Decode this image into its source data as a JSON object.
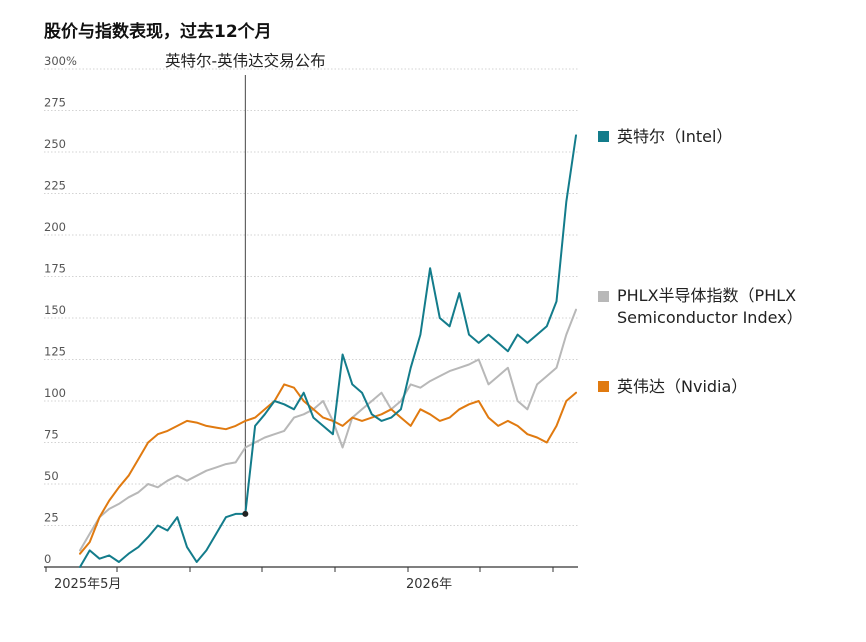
{
  "chart_data": {
    "type": "line",
    "title": "股价与指数表现，过去12个月",
    "y_unit_suffix": "%",
    "ylim": [
      0,
      300
    ],
    "yticks": [
      0,
      25,
      50,
      75,
      100,
      125,
      150,
      175,
      200,
      225,
      250,
      275,
      300
    ],
    "x_tick_labels": [
      "2025年5月",
      "2026年"
    ],
    "annotation": "英特尔-英伟达交易公布",
    "annotation_value": 32,
    "grid": true,
    "legend_position": "right",
    "series": [
      {
        "name": "英特尔（Intel）",
        "color": "#137c8b",
        "values": [
          0,
          10,
          5,
          7,
          3,
          8,
          12,
          18,
          25,
          22,
          30,
          12,
          3,
          10,
          20,
          30,
          32,
          32,
          85,
          92,
          100,
          98,
          95,
          105,
          90,
          85,
          80,
          128,
          110,
          105,
          92,
          88,
          90,
          95,
          120,
          140,
          180,
          150,
          145,
          165,
          140,
          135,
          140,
          135,
          130,
          140,
          135,
          140,
          145,
          160,
          220,
          260
        ]
      },
      {
        "name": "PHLX半导体指数（PHLX Semiconductor Index）",
        "color": "#b8b8b8",
        "values": [
          10,
          20,
          30,
          35,
          38,
          42,
          45,
          50,
          48,
          52,
          55,
          52,
          55,
          58,
          60,
          62,
          63,
          72,
          75,
          78,
          80,
          82,
          90,
          92,
          95,
          100,
          88,
          72,
          90,
          95,
          100,
          105,
          95,
          100,
          110,
          108,
          112,
          115,
          118,
          120,
          122,
          125,
          110,
          115,
          120,
          100,
          95,
          110,
          115,
          120,
          140,
          155
        ]
      },
      {
        "name": "英伟达（Nvidia）",
        "color": "#e07a10",
        "values": [
          8,
          15,
          30,
          40,
          48,
          55,
          65,
          75,
          80,
          82,
          85,
          88,
          87,
          85,
          84,
          83,
          85,
          88,
          90,
          95,
          100,
          110,
          108,
          100,
          95,
          90,
          88,
          85,
          90,
          88,
          90,
          92,
          95,
          90,
          85,
          95,
          92,
          88,
          90,
          95,
          98,
          100,
          90,
          85,
          88,
          85,
          80,
          78,
          75,
          85,
          100,
          105
        ]
      }
    ]
  }
}
